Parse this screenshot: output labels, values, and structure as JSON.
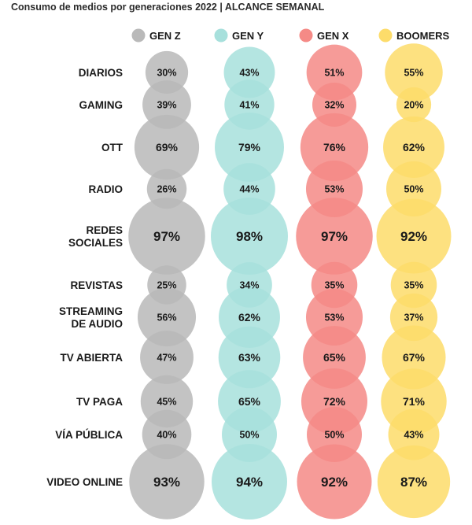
{
  "chart_data": {
    "type": "bubble",
    "title": "Consumo de medios por generaciones 2022 | ALCANCE SEMANAL",
    "categories": [
      "DIARIOS",
      "GAMING",
      "OTT",
      "RADIO",
      "REDES SOCIALES",
      "REVISTAS",
      "STREAMING DE AUDIO",
      "TV ABIERTA",
      "TV PAGA",
      "VÍA PÚBLICA",
      "VIDEO ONLINE"
    ],
    "category_lines": [
      [
        "DIARIOS"
      ],
      [
        "GAMING"
      ],
      [
        "OTT"
      ],
      [
        "RADIO"
      ],
      [
        "REDES",
        "SOCIALES"
      ],
      [
        "REVISTAS"
      ],
      [
        "STREAMING",
        "DE AUDIO"
      ],
      [
        "TV ABIERTA"
      ],
      [
        "TV PAGA"
      ],
      [
        "VÍA PÚBLICA"
      ],
      [
        "VIDEO ONLINE"
      ]
    ],
    "value_suffix": "%",
    "legend_position": "top",
    "series": [
      {
        "name": "GEN Z",
        "color": "#b9b9b9",
        "values": [
          30,
          39,
          69,
          26,
          97,
          25,
          56,
          47,
          45,
          40,
          93
        ]
      },
      {
        "name": "GEN Y",
        "color": "#a7e0dc",
        "values": [
          43,
          41,
          79,
          44,
          98,
          34,
          62,
          63,
          65,
          50,
          94
        ]
      },
      {
        "name": "GEN X",
        "color": "#f58a86",
        "values": [
          51,
          32,
          76,
          53,
          97,
          35,
          53,
          65,
          72,
          50,
          92
        ]
      },
      {
        "name": "BOOMERS",
        "color": "#fddc6a",
        "values": [
          55,
          20,
          62,
          50,
          92,
          35,
          37,
          67,
          71,
          43,
          87
        ]
      }
    ]
  }
}
